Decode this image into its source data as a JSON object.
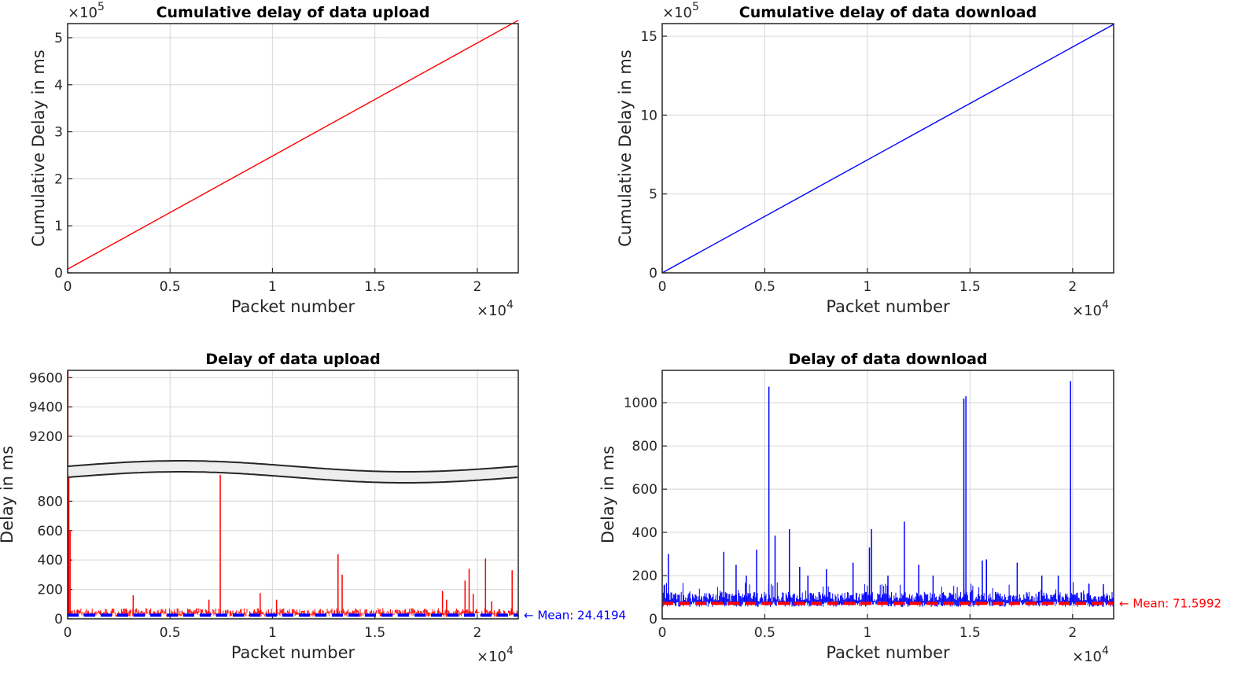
{
  "colors": {
    "upload": "#ff0000",
    "download": "#0000ff",
    "upload_mean": "#0000ff",
    "download_mean": "#ff0000"
  },
  "chart_data": [
    {
      "type": "line",
      "title": "Cumulative delay of data upload",
      "xlabel": "Packet number",
      "ylabel": "Cumulative Delay in ms",
      "xlim": [
        0,
        22000
      ],
      "ylim": [
        0,
        530000
      ],
      "x_exponent_label": "×10",
      "x_exponent": "4",
      "y_exponent_label": "×10",
      "y_exponent": "5",
      "xticks": [
        0,
        5000,
        10000,
        15000,
        20000
      ],
      "xticklabels": [
        "0",
        "0.5",
        "1",
        "1.5",
        "2"
      ],
      "yticks": [
        0,
        100000,
        200000,
        300000,
        400000,
        500000
      ],
      "yticklabels": [
        "0",
        "1",
        "2",
        "3",
        "4",
        "5"
      ],
      "grid": true,
      "series": [
        {
          "color": "#ff0000",
          "x": [
            0,
            22000
          ],
          "y": [
            8000,
            537000
          ]
        }
      ]
    },
    {
      "type": "line",
      "title": "Cumulative delay of data download",
      "xlabel": "Packet number",
      "ylabel": "Cumulative Delay in ms",
      "xlim": [
        0,
        22000
      ],
      "ylim": [
        0,
        1580000
      ],
      "x_exponent_label": "×10",
      "x_exponent": "4",
      "y_exponent_label": "×10",
      "y_exponent": "5",
      "xticks": [
        0,
        5000,
        10000,
        15000,
        20000
      ],
      "xticklabels": [
        "0",
        "0.5",
        "1",
        "1.5",
        "2"
      ],
      "yticks": [
        0,
        500000,
        1000000,
        1500000
      ],
      "yticklabels": [
        "0",
        "5",
        "10",
        "15"
      ],
      "grid": true,
      "series": [
        {
          "color": "#0000ff",
          "x": [
            0,
            22000
          ],
          "y": [
            0,
            1575000
          ]
        }
      ]
    },
    {
      "type": "line",
      "title": "Delay of data upload",
      "xlabel": "Packet number",
      "ylabel": "Delay in ms",
      "xlim": [
        0,
        22000
      ],
      "y_break": true,
      "ylim_lower": [
        0,
        1000
      ],
      "ylim_upper": [
        9000,
        9650
      ],
      "x_exponent_label": "×10",
      "x_exponent": "4",
      "xticks": [
        0,
        5000,
        10000,
        15000,
        20000
      ],
      "xticklabels": [
        "0",
        "0.5",
        "1",
        "1.5",
        "2"
      ],
      "yticks_lower": [
        0,
        200,
        400,
        600,
        800
      ],
      "yticklabels_lower": [
        "0",
        "200",
        "400",
        "600",
        "800"
      ],
      "yticks_upper": [
        9200,
        9400,
        9600
      ],
      "yticklabels_upper": [
        "9200",
        "9400",
        "9600"
      ],
      "grid": true,
      "baseline": 28,
      "spikes": [
        {
          "x": 15,
          "y": 9650
        },
        {
          "x": 60,
          "y": 980
        },
        {
          "x": 120,
          "y": 600
        },
        {
          "x": 500,
          "y": 60
        },
        {
          "x": 1000,
          "y": 55
        },
        {
          "x": 1600,
          "y": 50
        },
        {
          "x": 3200,
          "y": 160
        },
        {
          "x": 4000,
          "y": 60
        },
        {
          "x": 6900,
          "y": 130
        },
        {
          "x": 7450,
          "y": 980
        },
        {
          "x": 9400,
          "y": 175
        },
        {
          "x": 10200,
          "y": 130
        },
        {
          "x": 13200,
          "y": 440
        },
        {
          "x": 13400,
          "y": 300
        },
        {
          "x": 16200,
          "y": 60
        },
        {
          "x": 18300,
          "y": 190
        },
        {
          "x": 18500,
          "y": 130
        },
        {
          "x": 19400,
          "y": 260
        },
        {
          "x": 19600,
          "y": 340
        },
        {
          "x": 19800,
          "y": 170
        },
        {
          "x": 20400,
          "y": 410
        },
        {
          "x": 20700,
          "y": 120
        },
        {
          "x": 21700,
          "y": 330
        }
      ],
      "mean": 24.4194,
      "mean_label": "← Mean: 24.4194",
      "series_color": "#ff0000",
      "mean_color": "#0000ff"
    },
    {
      "type": "line",
      "title": "Delay of data download",
      "xlabel": "Packet number",
      "ylabel": "Delay in ms",
      "xlim": [
        0,
        22000
      ],
      "ylim": [
        0,
        1150
      ],
      "x_exponent_label": "×10",
      "x_exponent": "4",
      "xticks": [
        0,
        5000,
        10000,
        15000,
        20000
      ],
      "xticklabels": [
        "0",
        "0.5",
        "1",
        "1.5",
        "2"
      ],
      "yticks": [
        0,
        200,
        400,
        600,
        800,
        1000
      ],
      "yticklabels": [
        "0",
        "200",
        "400",
        "600",
        "800",
        "1000"
      ],
      "grid": true,
      "baseline": 80,
      "spikes": [
        {
          "x": 300,
          "y": 300
        },
        {
          "x": 3000,
          "y": 310
        },
        {
          "x": 3600,
          "y": 250
        },
        {
          "x": 4100,
          "y": 200
        },
        {
          "x": 4600,
          "y": 320
        },
        {
          "x": 5200,
          "y": 1075
        },
        {
          "x": 5500,
          "y": 385
        },
        {
          "x": 6200,
          "y": 415
        },
        {
          "x": 6700,
          "y": 240
        },
        {
          "x": 7100,
          "y": 200
        },
        {
          "x": 8000,
          "y": 230
        },
        {
          "x": 9300,
          "y": 260
        },
        {
          "x": 10100,
          "y": 330
        },
        {
          "x": 10200,
          "y": 415
        },
        {
          "x": 11000,
          "y": 200
        },
        {
          "x": 11800,
          "y": 450
        },
        {
          "x": 12500,
          "y": 250
        },
        {
          "x": 13200,
          "y": 200
        },
        {
          "x": 14700,
          "y": 1020
        },
        {
          "x": 14800,
          "y": 1030
        },
        {
          "x": 15600,
          "y": 270
        },
        {
          "x": 15800,
          "y": 275
        },
        {
          "x": 17300,
          "y": 260
        },
        {
          "x": 18500,
          "y": 200
        },
        {
          "x": 19300,
          "y": 200
        },
        {
          "x": 19900,
          "y": 1100
        },
        {
          "x": 20800,
          "y": 160
        },
        {
          "x": 21500,
          "y": 160
        }
      ],
      "mean": 71.5992,
      "mean_label": "← Mean: 71.5992",
      "series_color": "#0000ff",
      "mean_color": "#ff0000"
    }
  ]
}
